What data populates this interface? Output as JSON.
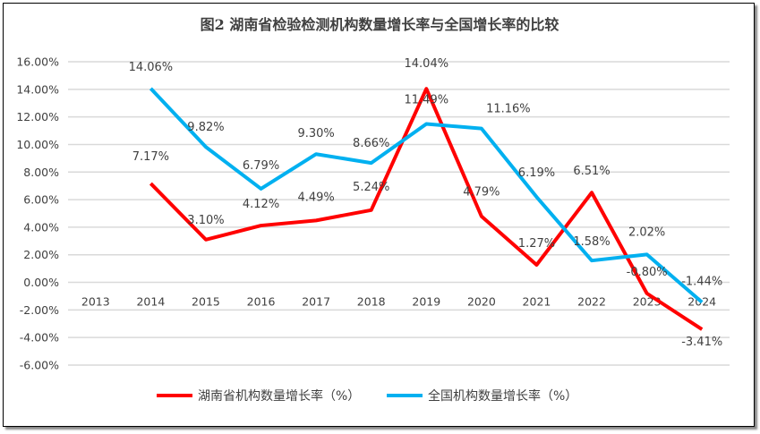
{
  "chart_data": {
    "type": "line",
    "title": "图2 湖南省检验检测机构数量增长率与全国增长率的比较",
    "categories": [
      "2013",
      "2014",
      "2015",
      "2016",
      "2017",
      "2018",
      "2019",
      "2020",
      "2021",
      "2022",
      "2023",
      "2024"
    ],
    "ylim": [
      -6,
      16
    ],
    "yticks": [
      "-6.00%",
      "-4.00%",
      "-2.00%",
      "0.00%",
      "2.00%",
      "4.00%",
      "6.00%",
      "8.00%",
      "10.00%",
      "12.00%",
      "14.00%",
      "16.00%"
    ],
    "grid": true,
    "legend_position": "bottom",
    "series": [
      {
        "name": "湖南省机构数量增长率（%）",
        "color": "#ff0000",
        "values": [
          null,
          7.17,
          3.1,
          4.12,
          4.49,
          5.24,
          14.04,
          4.79,
          1.27,
          6.51,
          -0.8,
          -3.41
        ],
        "labels": [
          "",
          "7.17%",
          "3.10%",
          "4.12%",
          "4.49%",
          "5.24%",
          "14.04%",
          "4.79%",
          "1.27%",
          "6.51%",
          "-0.80%",
          "-3.41%"
        ]
      },
      {
        "name": "全国机构数量增长率（%）",
        "color": "#00b0f0",
        "values": [
          null,
          14.06,
          9.82,
          6.79,
          9.3,
          8.66,
          11.49,
          11.16,
          6.19,
          1.58,
          2.02,
          -1.44
        ],
        "labels": [
          "",
          "14.06%",
          "9.82%",
          "6.79%",
          "9.30%",
          "8.66%",
          "11.49%",
          "11.16%",
          "6.19%",
          "1.58%",
          "2.02%",
          "-1.44%"
        ]
      }
    ]
  }
}
